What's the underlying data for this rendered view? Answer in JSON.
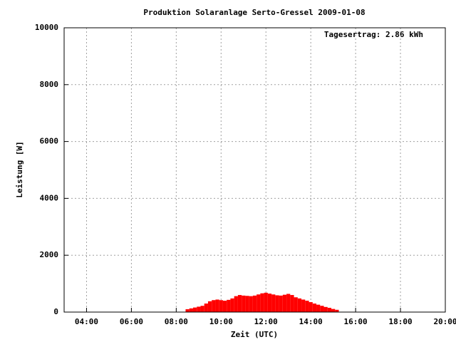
{
  "chart_data": {
    "type": "bar",
    "title": "Produktion Solaranlage Serto-Gressel 2009-01-08",
    "annotation": "Tagesertrag: 2.86 kWh",
    "x_label": "Zeit (UTC)",
    "y_label": "Leistung [W]",
    "x": [
      510,
      520,
      530,
      540,
      550,
      560,
      570,
      580,
      590,
      600,
      610,
      620,
      630,
      640,
      650,
      660,
      670,
      680,
      690,
      700,
      710,
      720,
      730,
      740,
      750,
      760,
      770,
      780,
      790,
      800,
      810,
      820,
      830,
      840,
      850,
      860,
      870,
      880,
      890,
      900,
      910
    ],
    "values": [
      100,
      130,
      160,
      190,
      220,
      300,
      380,
      420,
      440,
      420,
      400,
      430,
      480,
      560,
      600,
      580,
      570,
      560,
      580,
      620,
      660,
      680,
      650,
      620,
      590,
      580,
      610,
      640,
      600,
      520,
      480,
      440,
      400,
      350,
      300,
      260,
      220,
      180,
      150,
      110,
      80
    ],
    "color": "#ff0000",
    "xlim": [
      180,
      1200
    ],
    "xticks": [
      {
        "value": 240,
        "label": "04:00"
      },
      {
        "value": 360,
        "label": "06:00"
      },
      {
        "value": 480,
        "label": "08:00"
      },
      {
        "value": 600,
        "label": "10:00"
      },
      {
        "value": 720,
        "label": "12:00"
      },
      {
        "value": 840,
        "label": "14:00"
      },
      {
        "value": 960,
        "label": "16:00"
      },
      {
        "value": 1080,
        "label": "18:00"
      },
      {
        "value": 1200,
        "label": "20:00"
      }
    ],
    "ylim": [
      0,
      10000
    ],
    "yticks": [
      0,
      2000,
      4000,
      6000,
      8000,
      10000
    ],
    "grid": true
  }
}
